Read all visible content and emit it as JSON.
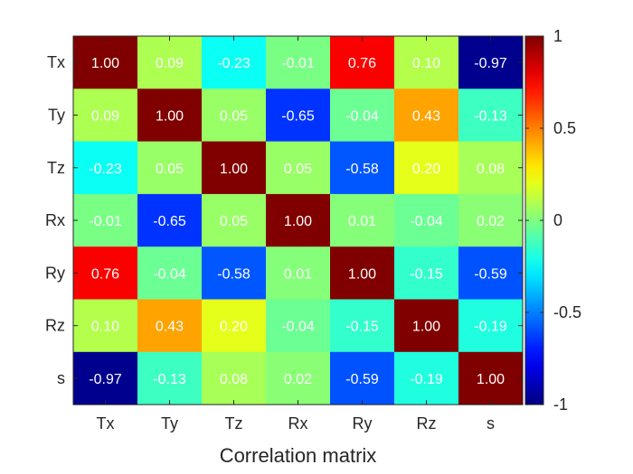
{
  "chart_data": {
    "type": "heatmap",
    "title": "",
    "xlabel": "Correlation matrix",
    "ylabel": "",
    "labels": [
      "Tx",
      "Ty",
      "Tz",
      "Rx",
      "Ry",
      "Rz",
      "s"
    ],
    "values": [
      [
        1.0,
        0.09,
        -0.23,
        -0.01,
        0.76,
        0.1,
        -0.97
      ],
      [
        0.09,
        1.0,
        0.05,
        -0.65,
        -0.04,
        0.43,
        -0.13
      ],
      [
        -0.23,
        0.05,
        1.0,
        0.05,
        -0.58,
        0.2,
        0.08
      ],
      [
        -0.01,
        -0.65,
        0.05,
        1.0,
        0.01,
        -0.04,
        0.02
      ],
      [
        0.76,
        -0.04,
        -0.58,
        0.01,
        1.0,
        -0.15,
        -0.59
      ],
      [
        0.1,
        0.43,
        0.2,
        -0.04,
        -0.15,
        1.0,
        -0.19
      ],
      [
        -0.97,
        -0.13,
        0.08,
        0.02,
        -0.59,
        -0.19,
        1.0
      ]
    ],
    "colormap": "jet",
    "clim": [
      -1,
      1
    ],
    "colorbar": {
      "ticks": [
        1,
        0.5,
        0,
        -0.5,
        -1
      ],
      "tick_labels": [
        "1",
        "0.5",
        "0",
        "-0.5",
        "-1"
      ]
    }
  }
}
